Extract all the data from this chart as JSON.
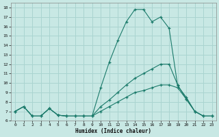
{
  "xlabel": "Humidex (Indice chaleur)",
  "bg_color": "#c8e8e4",
  "grid_color": "#aad4d0",
  "line_color": "#1a7a6a",
  "xlim": [
    -0.5,
    23.5
  ],
  "ylim": [
    6,
    18.5
  ],
  "xticks": [
    0,
    1,
    2,
    3,
    4,
    5,
    6,
    7,
    8,
    9,
    10,
    11,
    12,
    13,
    14,
    15,
    16,
    17,
    18,
    19,
    20,
    21,
    22,
    23
  ],
  "yticks": [
    6,
    7,
    8,
    9,
    10,
    11,
    12,
    13,
    14,
    15,
    16,
    17,
    18
  ],
  "line1_x": [
    0,
    1,
    2,
    3,
    4,
    5,
    6,
    7,
    8,
    9,
    10,
    11,
    12,
    13,
    14,
    15,
    16,
    17,
    18,
    19,
    20,
    21,
    22,
    23
  ],
  "line1_y": [
    7.0,
    7.5,
    6.5,
    6.5,
    7.3,
    6.6,
    6.5,
    6.5,
    6.5,
    6.5,
    9.5,
    12.2,
    14.5,
    16.5,
    17.8,
    17.8,
    16.5,
    17.0,
    15.8,
    9.7,
    8.5,
    7.0,
    6.5,
    6.5
  ],
  "line2_x": [
    0,
    1,
    2,
    3,
    4,
    5,
    6,
    7,
    8,
    9,
    10,
    11,
    12,
    13,
    14,
    15,
    16,
    17,
    18,
    19,
    20,
    21,
    22,
    23
  ],
  "line2_y": [
    7.0,
    7.5,
    6.5,
    6.5,
    7.3,
    6.6,
    6.5,
    6.5,
    6.5,
    6.5,
    7.5,
    8.2,
    9.0,
    9.8,
    10.5,
    11.0,
    11.5,
    12.0,
    12.0,
    9.8,
    8.3,
    7.0,
    6.5,
    6.5
  ],
  "line3_x": [
    0,
    1,
    2,
    3,
    4,
    5,
    6,
    7,
    8,
    9,
    10,
    11,
    12,
    13,
    14,
    15,
    16,
    17,
    18,
    19,
    20,
    21,
    22,
    23
  ],
  "line3_y": [
    7.0,
    7.5,
    6.5,
    6.5,
    7.3,
    6.6,
    6.5,
    6.5,
    6.5,
    6.5,
    7.0,
    7.5,
    8.0,
    8.5,
    9.0,
    9.2,
    9.5,
    9.8,
    9.8,
    9.5,
    8.3,
    7.0,
    6.5,
    6.5
  ]
}
